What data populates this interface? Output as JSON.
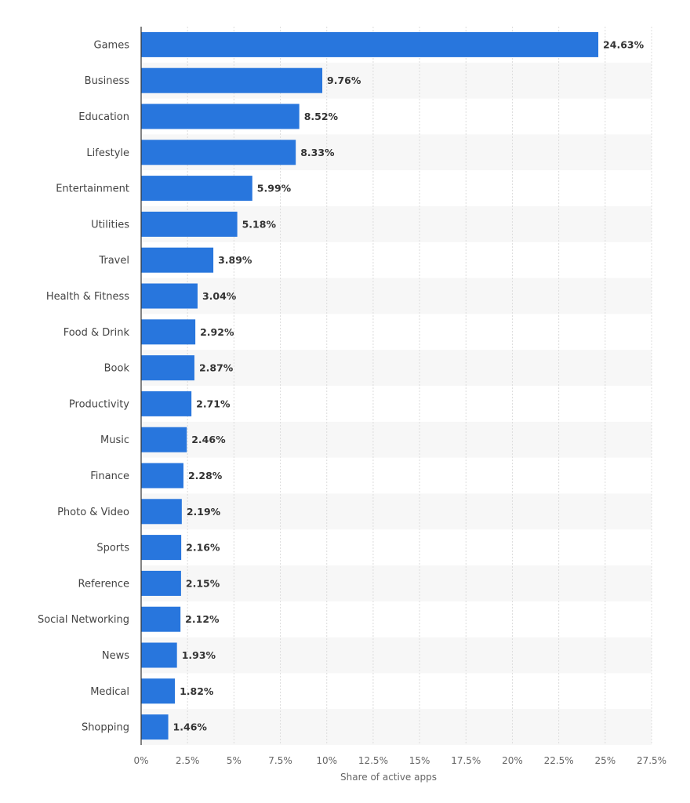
{
  "chart_data": {
    "type": "bar",
    "orientation": "horizontal",
    "categories": [
      "Games",
      "Business",
      "Education",
      "Lifestyle",
      "Entertainment",
      "Utilities",
      "Travel",
      "Health & Fitness",
      "Food & Drink",
      "Book",
      "Productivity",
      "Music",
      "Finance",
      "Photo & Video",
      "Sports",
      "Reference",
      "Social Networking",
      "News",
      "Medical",
      "Shopping"
    ],
    "values": [
      24.63,
      9.76,
      8.52,
      8.33,
      5.99,
      5.18,
      3.89,
      3.04,
      2.92,
      2.87,
      2.71,
      2.46,
      2.28,
      2.19,
      2.16,
      2.15,
      2.12,
      1.93,
      1.82,
      1.46
    ],
    "value_labels": [
      "24.63%",
      "9.76%",
      "8.52%",
      "8.33%",
      "5.99%",
      "5.18%",
      "3.89%",
      "3.04%",
      "2.92%",
      "2.87%",
      "2.71%",
      "2.46%",
      "2.28%",
      "2.19%",
      "2.16%",
      "2.15%",
      "2.12%",
      "1.93%",
      "1.82%",
      "1.46%"
    ],
    "xlabel": "Share of active apps",
    "ylabel": "",
    "xlim": [
      0,
      27.5
    ],
    "x_ticks": [
      0,
      2.5,
      5,
      7.5,
      10,
      12.5,
      15,
      17.5,
      20,
      22.5,
      25,
      27.5
    ],
    "x_tick_labels": [
      "0%",
      "2.5%",
      "5%",
      "7.5%",
      "10%",
      "12.5%",
      "15%",
      "17.5%",
      "20%",
      "22.5%",
      "25%",
      "27.5%"
    ],
    "grid": "vertical dashed",
    "alternating_row_bands": true,
    "colors": {
      "bar": "#2876dd",
      "band": "#f7f7f7",
      "grid": "#dcdcdc"
    }
  }
}
